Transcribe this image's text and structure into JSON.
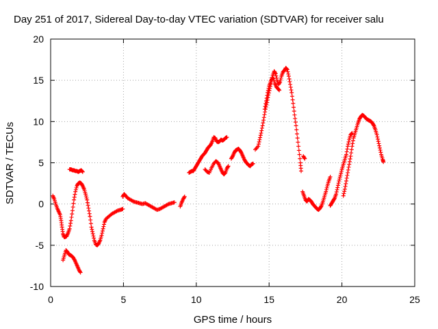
{
  "chart_data": {
    "type": "scatter",
    "title": "Day 251 of 2017, Sidereal Day-to-day VTEC variation (SDTVAR) for receiver salu",
    "xlabel": "GPS time / hours",
    "ylabel": "SDTVAR / TECUs",
    "xlim": [
      0,
      25
    ],
    "ylim": [
      -10,
      20
    ],
    "xticks": [
      "0",
      "5",
      "10",
      "15",
      "20",
      "25"
    ],
    "yticks": [
      "-10",
      "-5",
      "0",
      "5",
      "10",
      "15",
      "20"
    ],
    "grid": true,
    "marker": "plus",
    "color": "#ff0000",
    "series": [
      {
        "points": [
          [
            0.15,
            1.0
          ],
          [
            0.25,
            0.6
          ],
          [
            0.35,
            0.0
          ],
          [
            0.45,
            -0.5
          ],
          [
            0.55,
            -0.9
          ],
          [
            0.65,
            -1.3
          ],
          [
            0.72,
            -2.0
          ],
          [
            0.78,
            -2.8
          ],
          [
            0.85,
            -3.6
          ],
          [
            0.92,
            -4.0
          ],
          [
            1.0,
            -4.0
          ],
          [
            1.1,
            -3.9
          ],
          [
            1.2,
            -3.5
          ],
          [
            1.3,
            -3.0
          ],
          [
            1.4,
            -2.0
          ],
          [
            1.5,
            -0.8
          ],
          [
            1.6,
            0.5
          ],
          [
            1.7,
            1.5
          ],
          [
            1.8,
            2.2
          ],
          [
            1.9,
            2.5
          ],
          [
            2.0,
            2.6
          ],
          [
            2.1,
            2.5
          ],
          [
            2.2,
            2.2
          ],
          [
            2.3,
            1.8
          ],
          [
            2.4,
            1.2
          ],
          [
            2.5,
            0.5
          ],
          [
            2.6,
            -0.5
          ],
          [
            2.7,
            -1.5
          ],
          [
            2.8,
            -2.8
          ],
          [
            2.9,
            -3.6
          ],
          [
            3.0,
            -4.4
          ],
          [
            3.1,
            -4.9
          ],
          [
            3.2,
            -5.0
          ],
          [
            3.3,
            -4.8
          ],
          [
            3.4,
            -4.4
          ],
          [
            3.5,
            -3.8
          ],
          [
            3.6,
            -3.0
          ],
          [
            3.7,
            -2.2
          ],
          [
            3.8,
            -1.8
          ],
          [
            4.0,
            -1.5
          ],
          [
            4.2,
            -1.2
          ],
          [
            4.4,
            -1.0
          ],
          [
            4.6,
            -0.8
          ],
          [
            4.8,
            -0.7
          ],
          [
            4.95,
            -0.6
          ]
        ]
      },
      {
        "points": [
          [
            0.85,
            -6.8
          ],
          [
            0.95,
            -6.2
          ],
          [
            1.05,
            -5.6
          ],
          [
            1.15,
            -5.8
          ],
          [
            1.25,
            -6.1
          ],
          [
            1.35,
            -6.2
          ],
          [
            1.45,
            -6.3
          ],
          [
            1.55,
            -6.5
          ],
          [
            1.65,
            -6.8
          ],
          [
            1.75,
            -7.2
          ],
          [
            1.85,
            -7.6
          ],
          [
            1.95,
            -8.0
          ],
          [
            2.05,
            -8.3
          ]
        ]
      },
      {
        "points": [
          [
            1.3,
            4.2
          ],
          [
            1.4,
            4.2
          ],
          [
            1.5,
            4.1
          ],
          [
            1.6,
            4.1
          ],
          [
            1.7,
            4.0
          ],
          [
            1.8,
            4.0
          ],
          [
            1.9,
            3.9
          ],
          [
            2.0,
            4.0
          ],
          [
            2.1,
            4.1
          ],
          [
            2.2,
            3.9
          ]
        ]
      },
      {
        "points": [
          [
            4.95,
            0.9
          ],
          [
            5.05,
            1.2
          ],
          [
            5.15,
            1.0
          ],
          [
            5.3,
            0.7
          ],
          [
            5.5,
            0.5
          ],
          [
            5.7,
            0.3
          ],
          [
            5.9,
            0.2
          ],
          [
            6.1,
            0.1
          ],
          [
            6.3,
            0.0
          ],
          [
            6.5,
            0.1
          ],
          [
            6.7,
            -0.1
          ],
          [
            6.9,
            -0.3
          ],
          [
            7.1,
            -0.5
          ],
          [
            7.3,
            -0.7
          ],
          [
            7.5,
            -0.6
          ],
          [
            7.7,
            -0.4
          ],
          [
            7.9,
            -0.2
          ],
          [
            8.1,
            0.0
          ],
          [
            8.3,
            0.1
          ],
          [
            8.5,
            0.2
          ]
        ]
      },
      {
        "points": [
          [
            8.9,
            -0.3
          ],
          [
            9.0,
            0.2
          ],
          [
            9.1,
            0.6
          ],
          [
            9.2,
            0.9
          ]
        ]
      },
      {
        "points": [
          [
            9.5,
            3.8
          ],
          [
            9.6,
            3.9
          ],
          [
            9.7,
            4.0
          ],
          [
            9.8,
            4.0
          ],
          [
            9.9,
            4.3
          ],
          [
            10.0,
            4.6
          ],
          [
            10.1,
            4.9
          ],
          [
            10.2,
            5.2
          ],
          [
            10.3,
            5.5
          ],
          [
            10.4,
            5.8
          ],
          [
            10.5,
            6.0
          ],
          [
            10.6,
            6.2
          ],
          [
            10.7,
            6.5
          ],
          [
            10.8,
            6.8
          ],
          [
            10.9,
            7.0
          ],
          [
            11.0,
            7.2
          ],
          [
            11.1,
            7.6
          ],
          [
            11.2,
            8.1
          ],
          [
            11.3,
            8.0
          ],
          [
            11.4,
            7.6
          ],
          [
            11.5,
            7.5
          ],
          [
            11.6,
            7.6
          ],
          [
            11.7,
            7.8
          ],
          [
            11.8,
            7.7
          ],
          [
            11.9,
            7.8
          ],
          [
            12.0,
            8.0
          ],
          [
            12.1,
            8.1
          ]
        ]
      },
      {
        "points": [
          [
            10.6,
            4.2
          ],
          [
            10.75,
            3.9
          ],
          [
            10.9,
            3.8
          ],
          [
            11.05,
            4.4
          ],
          [
            11.2,
            4.9
          ],
          [
            11.35,
            5.2
          ],
          [
            11.5,
            5.0
          ],
          [
            11.6,
            4.6
          ],
          [
            11.7,
            4.2
          ],
          [
            11.8,
            3.8
          ],
          [
            11.9,
            3.6
          ],
          [
            12.0,
            3.8
          ],
          [
            12.1,
            4.3
          ],
          [
            12.2,
            4.6
          ]
        ]
      },
      {
        "points": [
          [
            12.4,
            5.5
          ],
          [
            12.5,
            5.8
          ],
          [
            12.6,
            6.2
          ],
          [
            12.7,
            6.5
          ],
          [
            12.8,
            6.6
          ],
          [
            12.9,
            6.7
          ],
          [
            13.0,
            6.5
          ],
          [
            13.1,
            6.2
          ],
          [
            13.2,
            5.8
          ],
          [
            13.3,
            5.4
          ],
          [
            13.4,
            5.1
          ],
          [
            13.5,
            4.9
          ],
          [
            13.6,
            4.7
          ],
          [
            13.7,
            4.6
          ],
          [
            13.8,
            4.8
          ],
          [
            13.9,
            4.9
          ]
        ]
      },
      {
        "points": [
          [
            14.05,
            6.6
          ],
          [
            14.25,
            7.0
          ],
          [
            14.35,
            7.8
          ],
          [
            14.45,
            8.6
          ],
          [
            14.55,
            9.5
          ],
          [
            14.65,
            10.5
          ],
          [
            14.75,
            11.5
          ],
          [
            14.85,
            12.3
          ],
          [
            14.95,
            13.2
          ],
          [
            15.05,
            14.0
          ],
          [
            15.15,
            14.8
          ],
          [
            15.25,
            15.6
          ],
          [
            15.35,
            16.1
          ],
          [
            15.45,
            15.8
          ],
          [
            15.55,
            15.0
          ],
          [
            15.65,
            14.5
          ],
          [
            15.75,
            14.8
          ],
          [
            15.85,
            15.5
          ],
          [
            15.95,
            16.0
          ],
          [
            16.05,
            16.2
          ],
          [
            16.15,
            16.5
          ],
          [
            16.25,
            16.3
          ],
          [
            16.35,
            15.5
          ],
          [
            16.45,
            14.5
          ],
          [
            16.55,
            13.5
          ],
          [
            16.65,
            12.2
          ],
          [
            16.75,
            10.8
          ],
          [
            16.85,
            9.5
          ],
          [
            16.95,
            8.0
          ],
          [
            17.05,
            6.5
          ],
          [
            17.15,
            5.0
          ],
          [
            17.2,
            4.0
          ]
        ]
      },
      {
        "points": [
          [
            14.7,
            11.5
          ],
          [
            14.8,
            12.5
          ],
          [
            14.9,
            13.5
          ],
          [
            15.0,
            14.3
          ],
          [
            15.1,
            14.8
          ],
          [
            15.2,
            15.3
          ],
          [
            15.3,
            15.2
          ],
          [
            15.4,
            14.6
          ],
          [
            15.5,
            14.2
          ],
          [
            15.6,
            14.0
          ],
          [
            15.7,
            13.8
          ]
        ]
      },
      {
        "points": [
          [
            17.35,
            5.8
          ],
          [
            17.45,
            5.5
          ]
        ]
      },
      {
        "points": [
          [
            17.3,
            1.5
          ],
          [
            17.4,
            1.0
          ],
          [
            17.5,
            0.5
          ],
          [
            17.6,
            0.3
          ],
          [
            17.7,
            0.6
          ],
          [
            17.8,
            0.5
          ],
          [
            17.9,
            0.3
          ],
          [
            18.0,
            0.0
          ],
          [
            18.1,
            -0.2
          ],
          [
            18.2,
            -0.4
          ],
          [
            18.3,
            -0.6
          ],
          [
            18.4,
            -0.7
          ],
          [
            18.5,
            -0.5
          ],
          [
            18.6,
            -0.2
          ],
          [
            18.7,
            0.3
          ],
          [
            18.8,
            0.9
          ],
          [
            18.9,
            1.5
          ],
          [
            19.0,
            2.2
          ],
          [
            19.1,
            2.8
          ],
          [
            19.2,
            3.3
          ]
        ]
      },
      {
        "points": [
          [
            19.2,
            -0.2
          ],
          [
            19.3,
            0.1
          ],
          [
            19.4,
            0.4
          ],
          [
            19.5,
            0.7
          ],
          [
            19.6,
            1.2
          ],
          [
            19.7,
            2.0
          ],
          [
            19.8,
            2.8
          ],
          [
            19.9,
            3.5
          ],
          [
            20.0,
            4.2
          ],
          [
            20.1,
            4.8
          ],
          [
            20.2,
            5.4
          ],
          [
            20.3,
            6.0
          ],
          [
            20.4,
            7.0
          ],
          [
            20.5,
            7.8
          ],
          [
            20.6,
            8.4
          ],
          [
            20.7,
            8.6
          ]
        ]
      },
      {
        "points": [
          [
            20.1,
            1.0
          ],
          [
            20.2,
            1.8
          ],
          [
            20.3,
            2.8
          ],
          [
            20.4,
            3.8
          ],
          [
            20.5,
            4.8
          ],
          [
            20.6,
            5.8
          ],
          [
            20.7,
            7.0
          ],
          [
            20.8,
            8.0
          ],
          [
            20.9,
            8.6
          ],
          [
            21.0,
            9.2
          ],
          [
            21.1,
            9.8
          ],
          [
            21.2,
            10.3
          ],
          [
            21.3,
            10.6
          ],
          [
            21.4,
            10.8
          ],
          [
            21.5,
            10.7
          ],
          [
            21.6,
            10.5
          ],
          [
            21.7,
            10.3
          ],
          [
            21.8,
            10.2
          ],
          [
            21.9,
            10.1
          ],
          [
            22.0,
            10.0
          ],
          [
            22.1,
            9.8
          ],
          [
            22.2,
            9.5
          ],
          [
            22.3,
            9.0
          ],
          [
            22.4,
            8.4
          ],
          [
            22.5,
            7.6
          ],
          [
            22.6,
            6.8
          ],
          [
            22.7,
            6.0
          ],
          [
            22.8,
            5.4
          ],
          [
            22.85,
            5.1
          ]
        ]
      }
    ]
  }
}
